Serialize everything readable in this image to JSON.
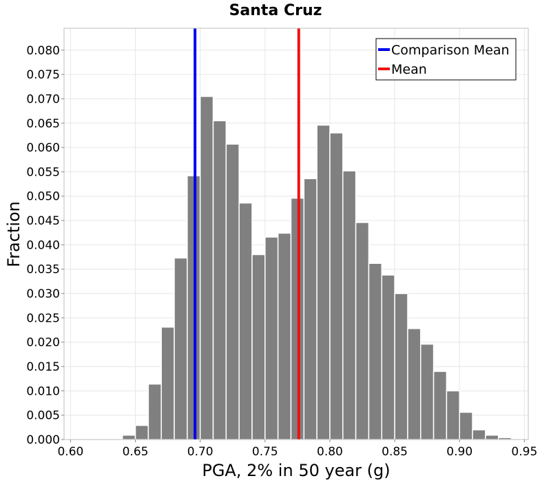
{
  "chart_data": {
    "type": "bar",
    "title": "Santa Cruz",
    "xlabel": "PGA, 2% in 50 year (g)",
    "ylabel": "Fraction",
    "xlim": [
      0.595,
      0.953
    ],
    "ylim": [
      0.0,
      0.0845
    ],
    "grid": true,
    "bin_width": 0.01,
    "bar_color": "#808080",
    "x_ticks": [
      0.6,
      0.65,
      0.7,
      0.75,
      0.8,
      0.85,
      0.9,
      0.95
    ],
    "x_tick_labels": [
      "0.60",
      "0.65",
      "0.70",
      "0.75",
      "0.80",
      "0.85",
      "0.90",
      "0.95"
    ],
    "y_ticks": [
      0.0,
      0.005,
      0.01,
      0.015,
      0.02,
      0.025,
      0.03,
      0.035,
      0.04,
      0.045,
      0.05,
      0.055,
      0.06,
      0.065,
      0.07,
      0.075,
      0.08
    ],
    "y_tick_labels": [
      "0.000",
      "0.005",
      "0.010",
      "0.015",
      "0.020",
      "0.025",
      "0.030",
      "0.035",
      "0.040",
      "0.045",
      "0.050",
      "0.055",
      "0.060",
      "0.065",
      "0.070",
      "0.075",
      "0.080"
    ],
    "bins": [
      {
        "x": 0.605,
        "value": 0.0001
      },
      {
        "x": 0.615,
        "value": 0.0001
      },
      {
        "x": 0.625,
        "value": 0.0001
      },
      {
        "x": 0.635,
        "value": 0.0002
      },
      {
        "x": 0.645,
        "value": 0.0009
      },
      {
        "x": 0.655,
        "value": 0.0029
      },
      {
        "x": 0.665,
        "value": 0.0114
      },
      {
        "x": 0.675,
        "value": 0.0231
      },
      {
        "x": 0.685,
        "value": 0.0373
      },
      {
        "x": 0.695,
        "value": 0.0542
      },
      {
        "x": 0.705,
        "value": 0.0705
      },
      {
        "x": 0.715,
        "value": 0.0655
      },
      {
        "x": 0.725,
        "value": 0.0607
      },
      {
        "x": 0.735,
        "value": 0.0486
      },
      {
        "x": 0.745,
        "value": 0.038
      },
      {
        "x": 0.755,
        "value": 0.0416
      },
      {
        "x": 0.765,
        "value": 0.0424
      },
      {
        "x": 0.775,
        "value": 0.0496
      },
      {
        "x": 0.785,
        "value": 0.0536
      },
      {
        "x": 0.795,
        "value": 0.0646
      },
      {
        "x": 0.805,
        "value": 0.063
      },
      {
        "x": 0.815,
        "value": 0.0552
      },
      {
        "x": 0.825,
        "value": 0.0446
      },
      {
        "x": 0.835,
        "value": 0.0362
      },
      {
        "x": 0.845,
        "value": 0.0338
      },
      {
        "x": 0.855,
        "value": 0.03
      },
      {
        "x": 0.865,
        "value": 0.0228
      },
      {
        "x": 0.875,
        "value": 0.0196
      },
      {
        "x": 0.885,
        "value": 0.014
      },
      {
        "x": 0.895,
        "value": 0.01
      },
      {
        "x": 0.905,
        "value": 0.0056
      },
      {
        "x": 0.915,
        "value": 0.002
      },
      {
        "x": 0.925,
        "value": 0.0009
      },
      {
        "x": 0.935,
        "value": 0.0004
      }
    ],
    "reference_lines": [
      {
        "name": "Comparison Mean",
        "x": 0.696,
        "color": "#0000ee"
      },
      {
        "name": "Mean",
        "x": 0.776,
        "color": "#ee1111"
      }
    ],
    "legend": {
      "position": "top-right",
      "entries": [
        {
          "label": "Comparison Mean",
          "color": "#0000ee"
        },
        {
          "label": "Mean",
          "color": "#ee1111"
        }
      ]
    }
  }
}
